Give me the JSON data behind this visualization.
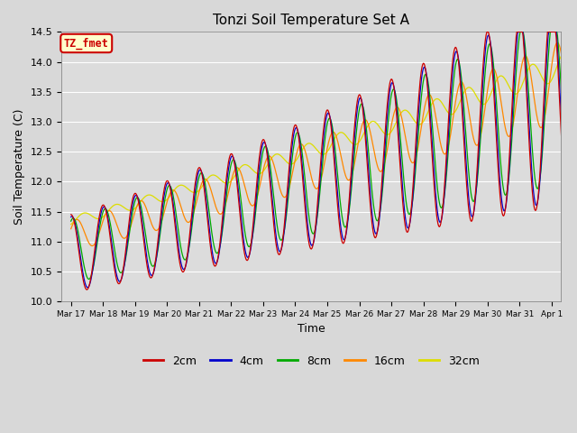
{
  "title": "Tonzi Soil Temperature Set A",
  "xlabel": "Time",
  "ylabel": "Soil Temperature (C)",
  "ylim": [
    10.0,
    14.5
  ],
  "yticks": [
    10.0,
    10.5,
    11.0,
    11.5,
    12.0,
    12.5,
    13.0,
    13.5,
    14.0,
    14.5
  ],
  "series_colors": {
    "2cm": "#cc0000",
    "4cm": "#0000cc",
    "8cm": "#00aa00",
    "16cm": "#ff8800",
    "32cm": "#dddd00"
  },
  "series_names": [
    "2cm",
    "4cm",
    "8cm",
    "16cm",
    "32cm"
  ],
  "n_days": 16,
  "points_per_day": 48,
  "fig_bg": "#d8d8d8",
  "plot_bg": "#dcdcdc",
  "annotation_text": "TZ_fmet",
  "annotation_bg": "#ffffcc",
  "annotation_border": "#cc0000",
  "day_labels": [
    "Mar 17",
    "Mar 18",
    "Mar 19",
    "Mar 20",
    "Mar 21",
    "Mar 22",
    "Mar 23",
    "Mar 24",
    "Mar 25",
    "Mar 26",
    "Mar 27",
    "Mar 28",
    "Mar 29",
    "Mar 30",
    "Mar 31",
    "Apr 1"
  ]
}
